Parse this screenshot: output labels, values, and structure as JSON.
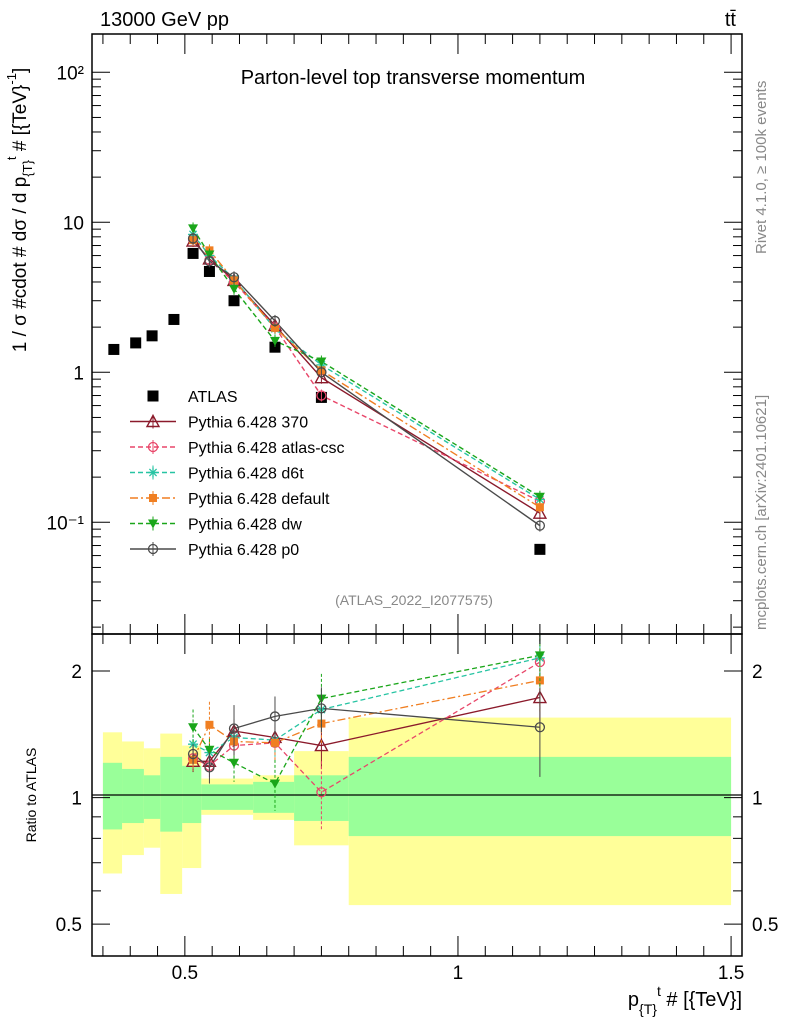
{
  "header": {
    "energy_label": "13000 GeV pp",
    "process_label": "tt̄",
    "rivet_label": "Rivet 4.1.0, ≥ 100k events",
    "mcplots_label": "mcplots.cern.ch [arXiv:2401.10621]",
    "analysis_label": "(ATLAS_2022_I2077575)"
  },
  "colors": {
    "ATLAS": "#000000",
    "370": "#8b1a2b",
    "atlas-csc": "#e8476a",
    "d6t": "#27c4a3",
    "default": "#f07f22",
    "dw": "#1aa61a",
    "p0": "#4a4a4a",
    "band_inner": "#99ff99",
    "band_outer": "#ffff99"
  },
  "chart_data": [
    {
      "type": "scatter",
      "title": "Parton-level top transverse momentum",
      "xlabel": "p_{T}^t [TeV]",
      "ylabel": "1 / σ dσ / d p_{T}^t [TeV^-1]",
      "yscale": "log",
      "xlim": [
        0.33,
        1.52
      ],
      "ylim": [
        0.018,
        180
      ],
      "yticks": [
        0.1,
        1,
        10,
        100
      ],
      "ytick_labels": [
        "10⁻¹",
        "1",
        "10",
        "10²"
      ],
      "legend_position": "lower-left",
      "series": [
        {
          "name": "ATLAS",
          "key": "ATLAS",
          "marker": "square",
          "line": "none",
          "x": [
            0.37,
            0.41,
            0.44,
            0.48,
            0.515,
            0.545,
            0.59,
            0.665,
            0.75,
            1.15
          ],
          "y": [
            1.42,
            1.57,
            1.75,
            2.25,
            6.2,
            4.7,
            3.0,
            1.47,
            0.68,
            0.066
          ]
        },
        {
          "name": "Pythia 6.428 370",
          "key": "370",
          "marker": "triangle-open",
          "line": "solid",
          "x": [
            0.515,
            0.545,
            0.59,
            0.665,
            0.75,
            1.15
          ],
          "y": [
            7.5,
            5.7,
            4.1,
            2.05,
            0.92,
            0.115
          ]
        },
        {
          "name": "Pythia 6.428 atlas-csc",
          "key": "atlas-csc",
          "marker": "circle-open",
          "line": "dashed",
          "x": [
            0.515,
            0.545,
            0.59,
            0.665,
            0.75,
            1.15
          ],
          "y": [
            7.7,
            5.6,
            4.0,
            2.0,
            0.7,
            0.138
          ]
        },
        {
          "name": "Pythia 6.428 d6t",
          "key": "d6t",
          "marker": "star",
          "line": "dashed",
          "x": [
            0.515,
            0.545,
            0.59,
            0.665,
            0.75,
            1.15
          ],
          "y": [
            8.3,
            6.0,
            4.2,
            1.95,
            1.12,
            0.142
          ]
        },
        {
          "name": "Pythia 6.428 default",
          "key": "default",
          "marker": "square-filled",
          "line": "dashdot",
          "x": [
            0.515,
            0.545,
            0.59,
            0.665,
            0.75,
            1.15
          ],
          "y": [
            7.6,
            6.5,
            4.1,
            1.98,
            1.03,
            0.126
          ]
        },
        {
          "name": "Pythia 6.428 dw",
          "key": "dw",
          "marker": "triangle-down",
          "line": "dashed",
          "x": [
            0.515,
            0.545,
            0.59,
            0.665,
            0.75,
            1.15
          ],
          "y": [
            9.1,
            6.1,
            3.6,
            1.62,
            1.18,
            0.148
          ]
        },
        {
          "name": "Pythia 6.428 p0",
          "key": "p0",
          "marker": "circle-open",
          "line": "solid",
          "x": [
            0.515,
            0.545,
            0.59,
            0.665,
            0.75,
            1.15
          ],
          "y": [
            7.8,
            5.5,
            4.3,
            2.2,
            1.0,
            0.095
          ]
        }
      ]
    },
    {
      "type": "scatter",
      "title": "",
      "xlabel": "p_{T}^t [TeV]",
      "ylabel": "Ratio to ATLAS",
      "yscale": "log",
      "xlim": [
        0.33,
        1.52
      ],
      "ylim": [
        0.42,
        2.45
      ],
      "yticks": [
        0.5,
        1,
        2
      ],
      "ytick_labels": [
        "0.5",
        "1",
        "2"
      ],
      "xticks": [
        0.5,
        1,
        1.5
      ],
      "xtick_labels": [
        "0.5",
        "1",
        "1.5"
      ],
      "bands": [
        {
          "x0": 0.35,
          "x1": 0.385,
          "inner": [
            0.84,
            1.21
          ],
          "outer": [
            0.66,
            1.43
          ]
        },
        {
          "x0": 0.385,
          "x1": 0.425,
          "inner": [
            0.87,
            1.17
          ],
          "outer": [
            0.73,
            1.36
          ]
        },
        {
          "x0": 0.425,
          "x1": 0.455,
          "inner": [
            0.89,
            1.13
          ],
          "outer": [
            0.76,
            1.31
          ]
        },
        {
          "x0": 0.455,
          "x1": 0.495,
          "inner": [
            0.83,
            1.25
          ],
          "outer": [
            0.59,
            1.42
          ]
        },
        {
          "x0": 0.495,
          "x1": 0.53,
          "inner": [
            0.87,
            1.19
          ],
          "outer": [
            0.68,
            1.33
          ]
        },
        {
          "x0": 0.53,
          "x1": 0.625,
          "inner": [
            0.935,
            1.075
          ],
          "outer": [
            0.91,
            1.11
          ]
        },
        {
          "x0": 0.625,
          "x1": 0.7,
          "inner": [
            0.92,
            1.09
          ],
          "outer": [
            0.885,
            1.13
          ]
        },
        {
          "x0": 0.7,
          "x1": 0.8,
          "inner": [
            0.88,
            1.13
          ],
          "outer": [
            0.77,
            1.29
          ]
        },
        {
          "x0": 0.8,
          "x1": 1.5,
          "inner": [
            0.81,
            1.25
          ],
          "outer": [
            0.555,
            1.55
          ]
        }
      ],
      "series": [
        {
          "name": "Pythia 6.428 370",
          "key": "370",
          "marker": "triangle-open",
          "line": "solid",
          "x": [
            0.515,
            0.545,
            0.59,
            0.665,
            0.75,
            1.15
          ],
          "y": [
            1.22,
            1.22,
            1.44,
            1.39,
            1.33,
            1.73
          ],
          "err": [
            0.07,
            0.08,
            0.1,
            0.12,
            0.16,
            0.3
          ]
        },
        {
          "name": "Pythia 6.428 atlas-csc",
          "key": "atlas-csc",
          "marker": "circle-open",
          "line": "dashed",
          "x": [
            0.515,
            0.545,
            0.59,
            0.665,
            0.75,
            1.15
          ],
          "y": [
            1.24,
            1.19,
            1.33,
            1.35,
            1.03,
            2.1
          ],
          "err": [
            0.07,
            0.08,
            0.1,
            0.12,
            0.19,
            0.35
          ]
        },
        {
          "name": "Pythia 6.428 d6t",
          "key": "d6t",
          "marker": "star",
          "line": "dashed",
          "x": [
            0.515,
            0.545,
            0.59,
            0.665,
            0.75,
            1.15
          ],
          "y": [
            1.34,
            1.28,
            1.39,
            1.37,
            1.62,
            2.15
          ],
          "err": [
            0.07,
            0.08,
            0.1,
            0.12,
            0.16,
            0.35
          ]
        },
        {
          "name": "Pythia 6.428 default",
          "key": "default",
          "marker": "square-filled",
          "line": "dashdot",
          "x": [
            0.515,
            0.545,
            0.59,
            0.665,
            0.75,
            1.15
          ],
          "y": [
            1.23,
            1.49,
            1.36,
            1.35,
            1.5,
            1.9
          ],
          "err": [
            0.07,
            0.2,
            0.1,
            0.12,
            0.16,
            0.3
          ]
        },
        {
          "name": "Pythia 6.428 dw",
          "key": "dw",
          "marker": "triangle-down",
          "line": "dashed",
          "x": [
            0.515,
            0.545,
            0.59,
            0.665,
            0.75,
            1.15
          ],
          "y": [
            1.47,
            1.3,
            1.21,
            1.08,
            1.72,
            2.18
          ],
          "err": [
            0.15,
            0.08,
            0.12,
            0.15,
            0.25,
            0.35
          ]
        },
        {
          "name": "Pythia 6.428 p0",
          "key": "p0",
          "marker": "circle-open",
          "line": "solid",
          "x": [
            0.515,
            0.545,
            0.59,
            0.665,
            0.75,
            1.15
          ],
          "y": [
            1.27,
            1.18,
            1.46,
            1.56,
            1.63,
            1.47
          ],
          "err": [
            0.07,
            0.1,
            0.2,
            0.18,
            0.2,
            0.35
          ]
        }
      ]
    }
  ]
}
